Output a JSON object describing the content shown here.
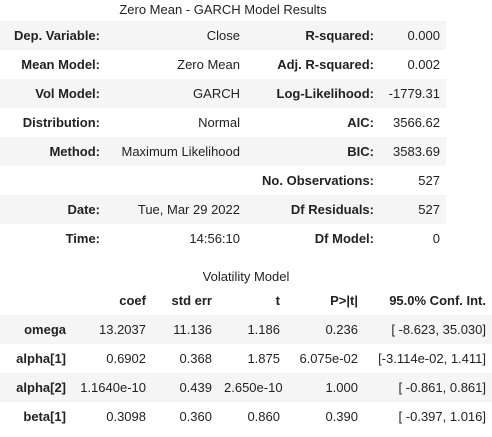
{
  "header": {
    "title": "Zero Mean - GARCH Model Results"
  },
  "summary_rows": [
    {
      "label1": "Dep. Variable:",
      "value1": "Close",
      "label2": "R-squared:",
      "value2": "0.000"
    },
    {
      "label1": "Mean Model:",
      "value1": "Zero Mean",
      "label2": "Adj. R-squared:",
      "value2": "0.002"
    },
    {
      "label1": "Vol Model:",
      "value1": "GARCH",
      "label2": "Log-Likelihood:",
      "value2": "-1779.31"
    },
    {
      "label1": "Distribution:",
      "value1": "Normal",
      "label2": "AIC:",
      "value2": "3566.62"
    },
    {
      "label1": "Method:",
      "value1": "Maximum Likelihood",
      "label2": "BIC:",
      "value2": "3583.69"
    },
    {
      "label1": "",
      "value1": "",
      "label2": "No. Observations:",
      "value2": "527"
    },
    {
      "label1": "Date:",
      "value1": "Tue, Mar 29 2022",
      "label2": "Df Residuals:",
      "value2": "527"
    },
    {
      "label1": "Time:",
      "value1": "14:56:10",
      "label2": "Df Model:",
      "value2": "0"
    }
  ],
  "volatility": {
    "title": "Volatility Model",
    "columns": [
      "",
      "coef",
      "std err",
      "t",
      "P>|t|",
      "95.0% Conf. Int."
    ],
    "rows": [
      {
        "param": "omega",
        "coef": "13.2037",
        "std_err": "11.136",
        "t": "1.186",
        "p": "0.236",
        "ci": "[ -8.623, 35.030]"
      },
      {
        "param": "alpha[1]",
        "coef": "0.6902",
        "std_err": "0.368",
        "t": "1.875",
        "p": "6.075e-02",
        "ci": "[-3.114e-02, 1.411]"
      },
      {
        "param": "alpha[2]",
        "coef": "1.1640e-10",
        "std_err": "0.439",
        "t": "2.650e-10",
        "p": "1.000",
        "ci": "[ -0.861, 0.861]"
      },
      {
        "param": "beta[1]",
        "coef": "0.3098",
        "std_err": "0.360",
        "t": "0.860",
        "p": "0.390",
        "ci": "[ -0.397, 1.016]"
      }
    ]
  }
}
